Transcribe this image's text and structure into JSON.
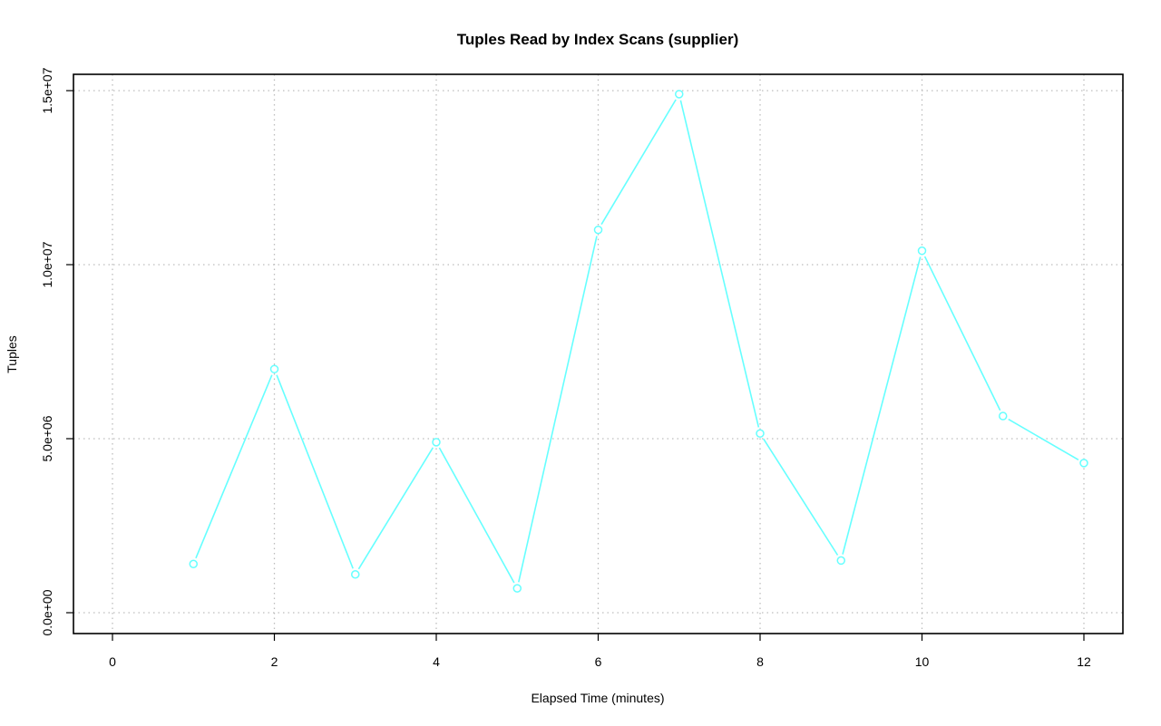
{
  "chart_data": {
    "type": "line",
    "title": "Tuples Read by Index Scans (supplier)",
    "xlabel": "Elapsed Time (minutes)",
    "ylabel": "Tuples",
    "xlim": [
      0,
      12
    ],
    "ylim": [
      0,
      15000000
    ],
    "x_ticks": [
      0,
      2,
      4,
      6,
      8,
      10,
      12
    ],
    "x_tick_labels": [
      "0",
      "2",
      "4",
      "6",
      "8",
      "10",
      "12"
    ],
    "y_ticks": [
      0,
      5000000,
      10000000,
      15000000
    ],
    "y_tick_labels": [
      "0.0e+00",
      "5.0e+06",
      "1.0e+07",
      "1.5e+07"
    ],
    "grid": true,
    "series": [
      {
        "color": "#66ffff",
        "marker": "open-circle",
        "x": [
          1,
          2,
          3,
          4,
          5,
          6,
          7,
          8,
          9,
          10,
          11,
          12
        ],
        "y": [
          1400000,
          7000000,
          1100000,
          4900000,
          700000,
          11000000,
          14900000,
          5150000,
          1500000,
          10400000,
          5650000,
          4300000
        ]
      }
    ]
  }
}
